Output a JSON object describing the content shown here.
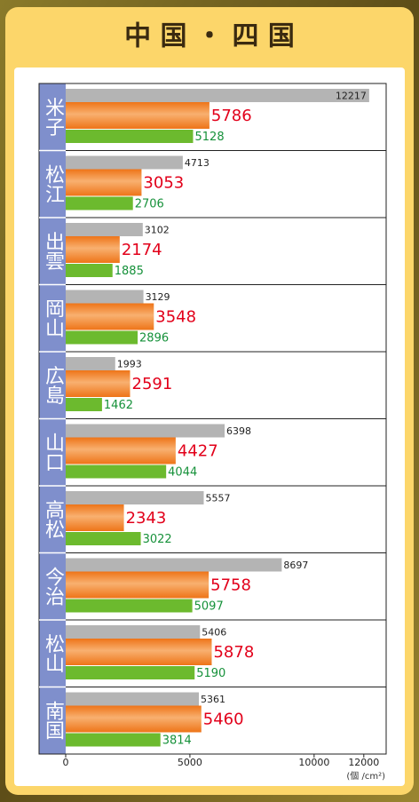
{
  "chart_data": {
    "type": "barh",
    "title": "中 国 ・ 四 国",
    "categories": [
      "米子",
      "松江",
      "出雲",
      "岡山",
      "広島",
      "山口",
      "高松",
      "今治",
      "松山",
      "南国"
    ],
    "series": [
      {
        "color": "#b4b4b4",
        "values": [
          12217,
          4713,
          3102,
          3129,
          1993,
          6398,
          5557,
          8697,
          5406,
          5361
        ]
      },
      {
        "color": "#ee7418",
        "values": [
          5786,
          3053,
          2174,
          3548,
          2591,
          4427,
          2343,
          5758,
          5878,
          5460
        ]
      },
      {
        "color": "#6cba2e",
        "values": [
          5128,
          2706,
          1885,
          2896,
          1462,
          4044,
          3022,
          5097,
          5190,
          3814
        ]
      }
    ],
    "x_label": "(個 /cm²)",
    "xlim": [
      0,
      12900
    ],
    "xticks": [
      0,
      5000,
      10000,
      12000
    ]
  }
}
